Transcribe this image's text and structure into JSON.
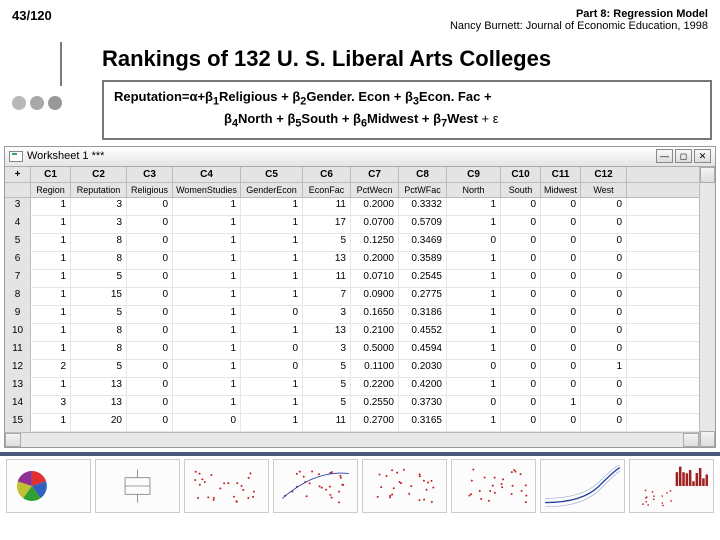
{
  "header": {
    "page_counter": "43/120",
    "part_line": "Part 8: Regression Model",
    "attribution": "Nancy Burnett: Journal of Economic Education, 1998"
  },
  "title": "Rankings of 132 U. S. Liberal Arts Colleges",
  "formula": {
    "prefix": "Reputation=α+β",
    "terms": [
      {
        "sub": "1",
        "label": "Religious"
      },
      {
        "sub": "2",
        "label": "Gender. Econ"
      },
      {
        "sub": "3",
        "label": "Econ. Fac"
      },
      {
        "sub": "4",
        "label": "North"
      },
      {
        "sub": "5",
        "label": "South"
      },
      {
        "sub": "6",
        "label": "Midwest"
      },
      {
        "sub": "7",
        "label": "West"
      }
    ],
    "tail": " + ε"
  },
  "worksheet": {
    "title": "Worksheet 1 ***",
    "corner": "+",
    "col_ids": [
      "C1",
      "C2",
      "C3",
      "C4",
      "C5",
      "C6",
      "C7",
      "C8",
      "C9",
      "C10",
      "C11",
      "C12"
    ],
    "col_names": [
      "Region",
      "Reputation",
      "Religious",
      "WomenStudies",
      "GenderEcon",
      "EconFac",
      "PctWecn",
      "PctWFac",
      "North",
      "South",
      "Midwest",
      "West"
    ],
    "rows": [
      {
        "n": "3",
        "v": [
          "1",
          "3",
          "0",
          "1",
          "1",
          "11",
          "0.2000",
          "0.3332",
          "1",
          "0",
          "0",
          "0"
        ]
      },
      {
        "n": "4",
        "v": [
          "1",
          "3",
          "0",
          "1",
          "1",
          "17",
          "0.0700",
          "0.5709",
          "1",
          "0",
          "0",
          "0"
        ]
      },
      {
        "n": "5",
        "v": [
          "1",
          "8",
          "0",
          "1",
          "1",
          "5",
          "0.1250",
          "0.3469",
          "0",
          "0",
          "0",
          "0"
        ]
      },
      {
        "n": "6",
        "v": [
          "1",
          "8",
          "0",
          "1",
          "1",
          "13",
          "0.2000",
          "0.3589",
          "1",
          "0",
          "0",
          "0"
        ]
      },
      {
        "n": "7",
        "v": [
          "1",
          "5",
          "0",
          "1",
          "1",
          "11",
          "0.0710",
          "0.2545",
          "1",
          "0",
          "0",
          "0"
        ]
      },
      {
        "n": "8",
        "v": [
          "1",
          "15",
          "0",
          "1",
          "1",
          "7",
          "0.0900",
          "0.2775",
          "1",
          "0",
          "0",
          "0"
        ]
      },
      {
        "n": "9",
        "v": [
          "1",
          "5",
          "0",
          "1",
          "0",
          "3",
          "0.1650",
          "0.3186",
          "1",
          "0",
          "0",
          "0"
        ]
      },
      {
        "n": "10",
        "v": [
          "1",
          "8",
          "0",
          "1",
          "1",
          "13",
          "0.2100",
          "0.4552",
          "1",
          "0",
          "0",
          "0"
        ]
      },
      {
        "n": "11",
        "v": [
          "1",
          "8",
          "0",
          "1",
          "0",
          "3",
          "0.5000",
          "0.4594",
          "1",
          "0",
          "0",
          "0"
        ]
      },
      {
        "n": "12",
        "v": [
          "2",
          "5",
          "0",
          "1",
          "0",
          "5",
          "0.1100",
          "0.2030",
          "0",
          "0",
          "0",
          "1"
        ]
      },
      {
        "n": "13",
        "v": [
          "1",
          "13",
          "0",
          "1",
          "1",
          "5",
          "0.2200",
          "0.4200",
          "1",
          "0",
          "0",
          "0"
        ]
      },
      {
        "n": "14",
        "v": [
          "3",
          "13",
          "0",
          "1",
          "1",
          "5",
          "0.2550",
          "0.3730",
          "0",
          "0",
          "1",
          "0"
        ]
      },
      {
        "n": "15",
        "v": [
          "1",
          "20",
          "0",
          "0",
          "1",
          "11",
          "0.2700",
          "0.3165",
          "1",
          "0",
          "0",
          "0"
        ]
      }
    ]
  },
  "colors": {
    "accent_blue": "#3a6ea5",
    "titlebar_grad_top": "#ffffff",
    "titlebar_grad_bot": "#e4e4e4",
    "footer_bar": "#4a5a7a"
  },
  "thumbnails": [
    {
      "type": "pie",
      "colors": [
        "#e03030",
        "#3060c0",
        "#30a030",
        "#c0c030",
        "#903090"
      ]
    },
    {
      "type": "boxplot",
      "color": "#808080"
    },
    {
      "type": "scatter",
      "color": "#c02020"
    },
    {
      "type": "scatter-line",
      "color": "#c02020",
      "line": "#2040a0"
    },
    {
      "type": "scatter",
      "color": "#c02020"
    },
    {
      "type": "scatter",
      "color": "#c02020"
    },
    {
      "type": "curve-band",
      "color": "#2040a0"
    },
    {
      "type": "hist-scatter",
      "hist": "#a02020",
      "dots": "#c02020"
    }
  ]
}
